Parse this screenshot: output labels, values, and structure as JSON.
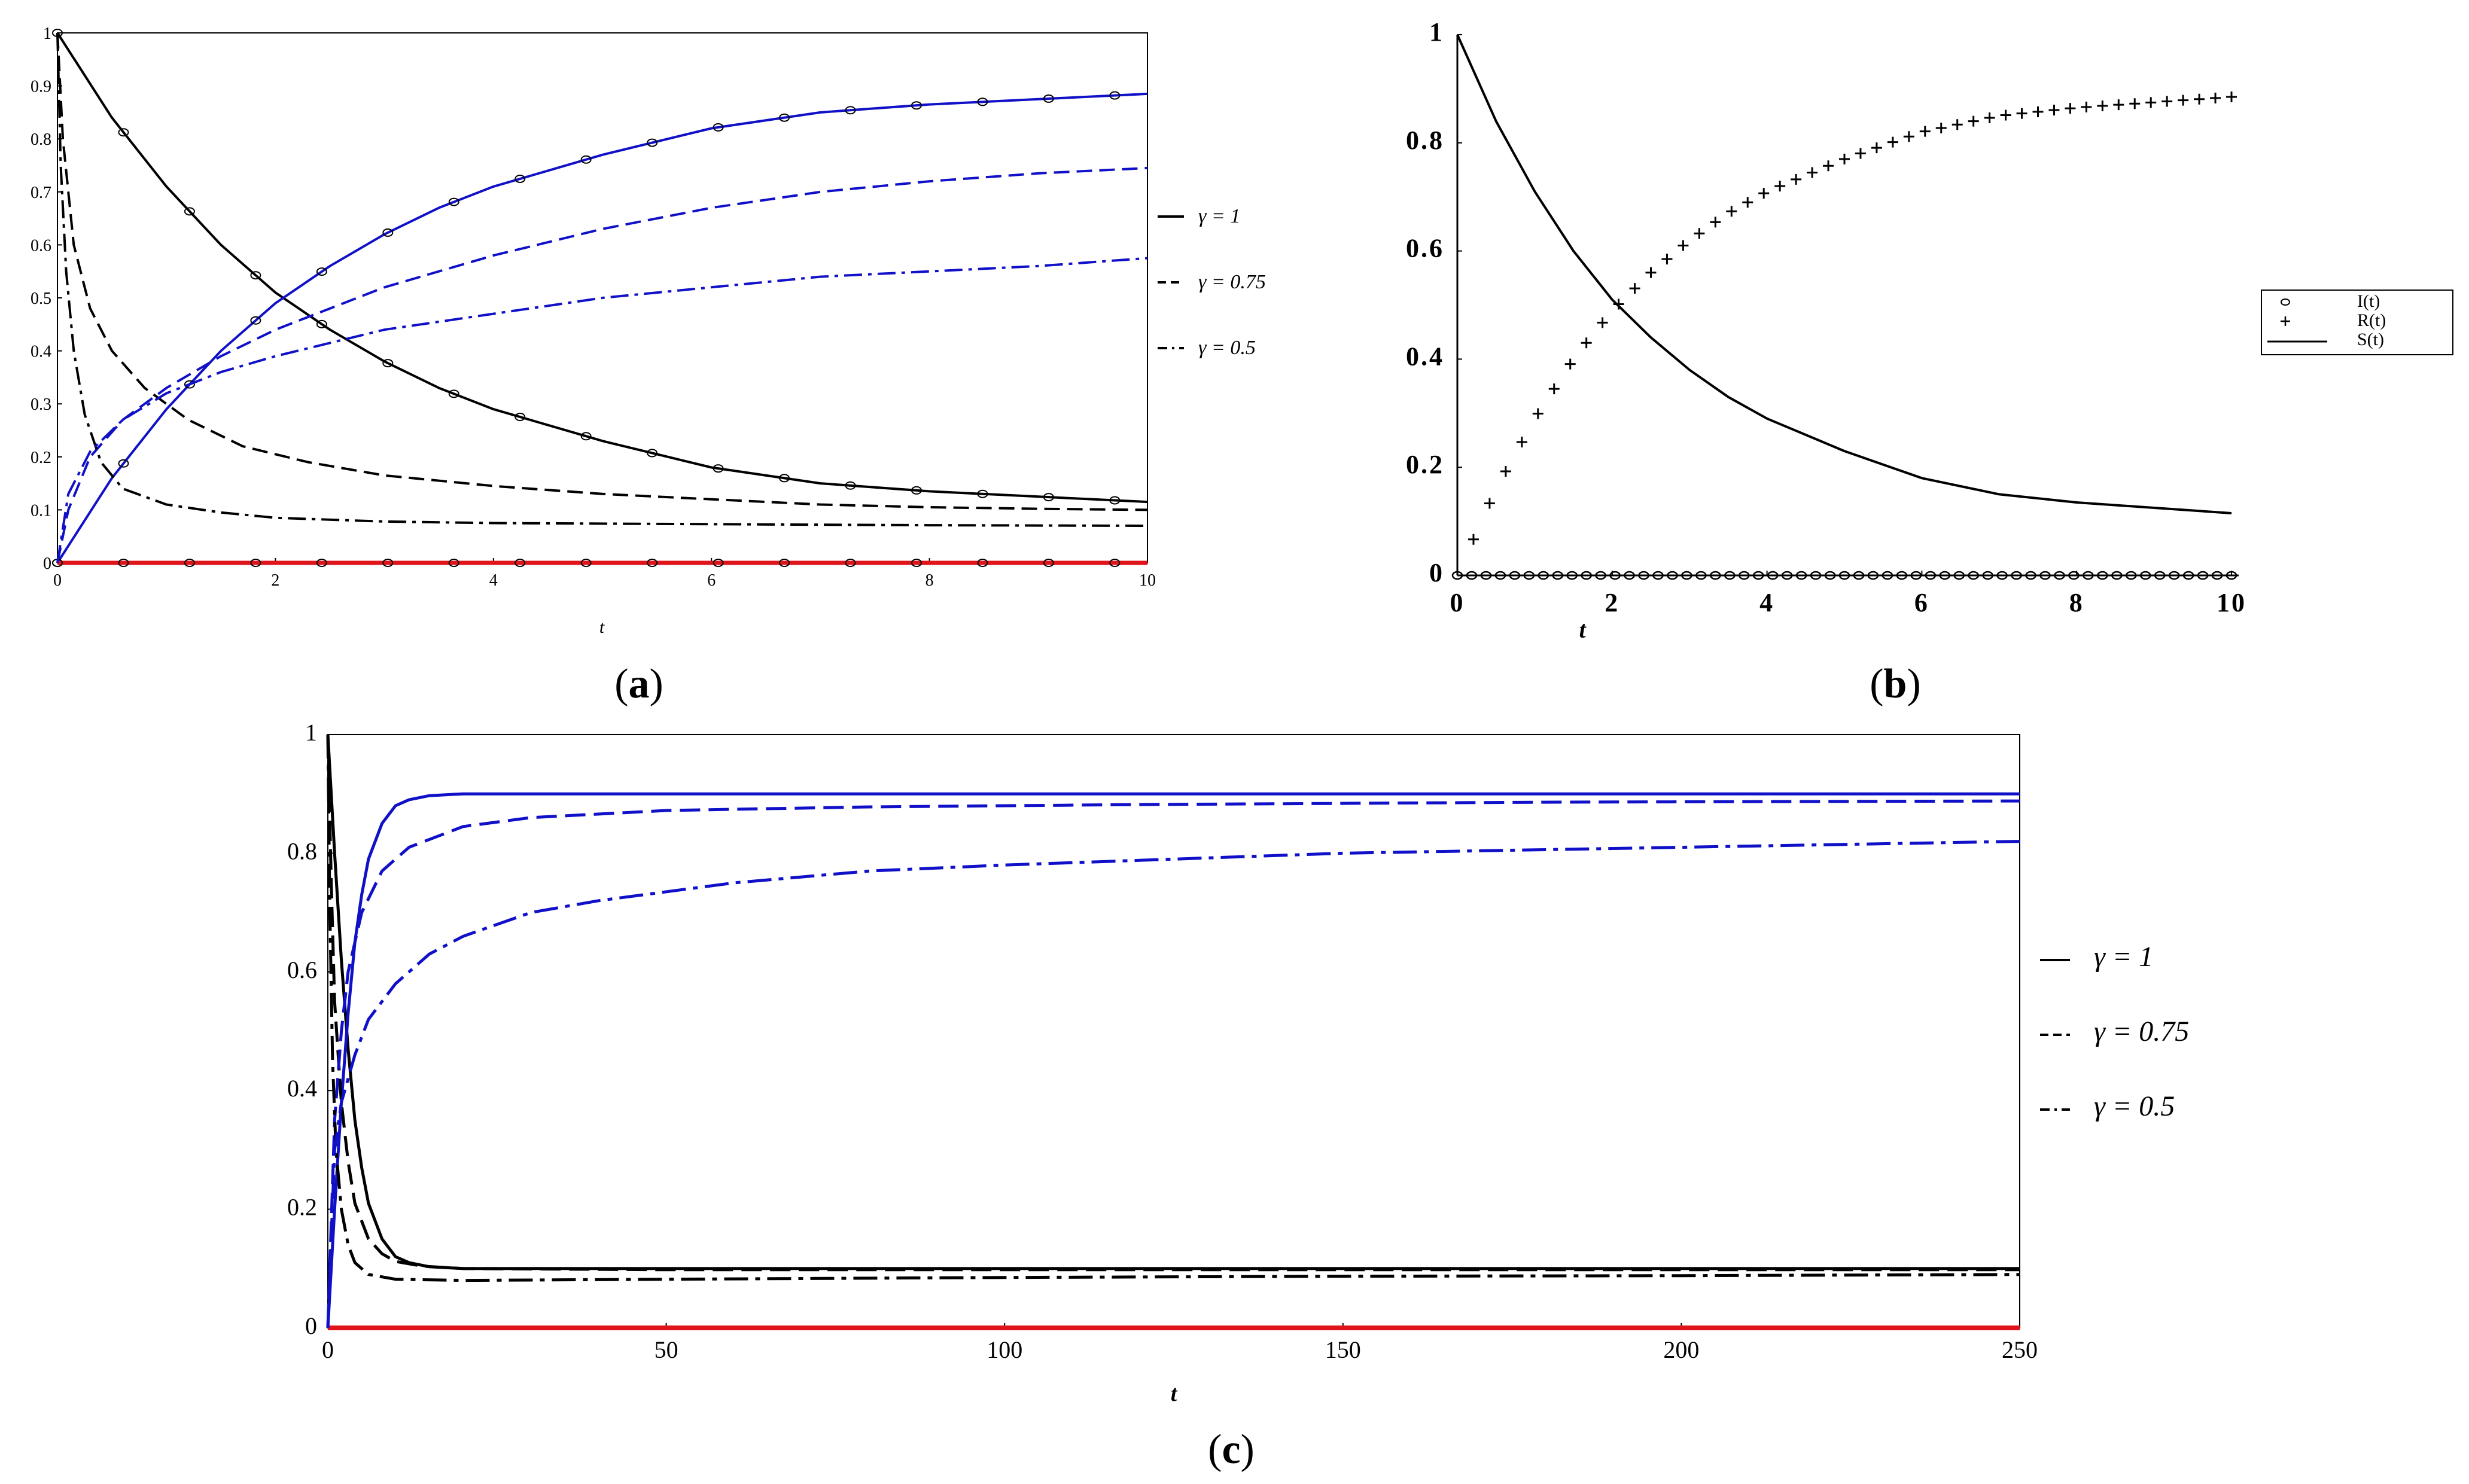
{
  "panels": {
    "a": {
      "caption_open": "(",
      "caption_letter": "a",
      "caption_close": ")"
    },
    "b": {
      "caption_open": "(",
      "caption_letter": "b",
      "caption_close": ")"
    },
    "c": {
      "caption_open": "(",
      "caption_letter": "c",
      "caption_close": ")"
    }
  },
  "colors": {
    "black": "#000000",
    "blue": "#1010c8",
    "red": "#e0151b"
  },
  "chart_data": [
    {
      "id": "a",
      "type": "line",
      "xlabel": "t",
      "ylabel": "",
      "xlim": [
        0,
        10
      ],
      "ylim": [
        0,
        1
      ],
      "xticks": [
        0,
        2,
        4,
        6,
        8,
        10
      ],
      "yticks": [
        0,
        0.1,
        0.2,
        0.3,
        0.4,
        0.5,
        0.6,
        0.7,
        0.8,
        0.9,
        1
      ],
      "legend": [
        {
          "label": "γ = 1",
          "style": "solid"
        },
        {
          "label": "γ = 0.75",
          "style": "dashed"
        },
        {
          "label": "γ = 0.5",
          "style": "dashdot"
        }
      ],
      "series": [
        {
          "name": "S, γ=1",
          "color": "black",
          "style": "solid",
          "markers": "circle",
          "x": [
            0,
            0.5,
            1,
            1.5,
            2,
            2.5,
            3,
            3.5,
            4,
            5,
            6,
            7,
            8,
            9,
            10
          ],
          "y": [
            1,
            0.84,
            0.71,
            0.6,
            0.51,
            0.44,
            0.38,
            0.33,
            0.29,
            0.23,
            0.18,
            0.15,
            0.135,
            0.125,
            0.115
          ]
        },
        {
          "name": "R, γ=1",
          "color": "blue",
          "style": "solid",
          "markers": "circle",
          "x": [
            0,
            0.5,
            1,
            1.5,
            2,
            2.5,
            3,
            3.5,
            4,
            5,
            6,
            7,
            8,
            9,
            10
          ],
          "y": [
            0,
            0.16,
            0.29,
            0.4,
            0.49,
            0.56,
            0.62,
            0.67,
            0.71,
            0.77,
            0.82,
            0.85,
            0.865,
            0.875,
            0.885
          ]
        },
        {
          "name": "I, γ=1",
          "color": "red",
          "style": "solid",
          "markers": "circle",
          "x": [
            0,
            10
          ],
          "y": [
            0,
            0
          ]
        },
        {
          "name": "S, γ=0.75",
          "color": "black",
          "style": "dashed",
          "x": [
            0,
            0.05,
            0.15,
            0.3,
            0.5,
            0.8,
            1.2,
            1.7,
            2.3,
            3,
            4,
            5,
            6,
            7,
            8,
            9,
            10
          ],
          "y": [
            1,
            0.8,
            0.6,
            0.48,
            0.4,
            0.33,
            0.27,
            0.22,
            0.19,
            0.165,
            0.145,
            0.13,
            0.12,
            0.11,
            0.105,
            0.102,
            0.1
          ]
        },
        {
          "name": "R, γ=0.75",
          "color": "blue",
          "style": "dashed",
          "x": [
            0,
            0.1,
            0.3,
            0.6,
            1,
            1.5,
            2,
            3,
            4,
            5,
            6,
            7,
            8,
            9,
            10
          ],
          "y": [
            0,
            0.1,
            0.2,
            0.27,
            0.33,
            0.39,
            0.44,
            0.52,
            0.58,
            0.63,
            0.67,
            0.7,
            0.72,
            0.735,
            0.745
          ]
        },
        {
          "name": "S, γ=0.5",
          "color": "black",
          "style": "dashdot",
          "x": [
            0,
            0.03,
            0.08,
            0.15,
            0.25,
            0.4,
            0.6,
            1,
            1.5,
            2,
            3,
            4,
            6,
            8,
            10
          ],
          "y": [
            1,
            0.75,
            0.55,
            0.4,
            0.28,
            0.19,
            0.14,
            0.11,
            0.095,
            0.085,
            0.078,
            0.075,
            0.073,
            0.071,
            0.07
          ]
        },
        {
          "name": "R, γ=0.5",
          "color": "blue",
          "style": "dashdot",
          "x": [
            0,
            0.1,
            0.3,
            0.6,
            1,
            1.5,
            2,
            3,
            4,
            5,
            6,
            7,
            8,
            9,
            10
          ],
          "y": [
            0,
            0.13,
            0.21,
            0.27,
            0.32,
            0.36,
            0.39,
            0.44,
            0.47,
            0.5,
            0.52,
            0.54,
            0.55,
            0.56,
            0.575
          ]
        }
      ]
    },
    {
      "id": "b",
      "type": "line",
      "xlabel": "t",
      "ylabel": "",
      "xlim": [
        0,
        10
      ],
      "ylim": [
        0,
        1
      ],
      "xticks": [
        0,
        2,
        4,
        6,
        8,
        10
      ],
      "yticks": [
        0,
        0.2,
        0.4,
        0.6,
        0.8,
        1
      ],
      "legend": [
        {
          "label": "I(t)",
          "style": "circle"
        },
        {
          "label": "R(t)",
          "style": "plus"
        },
        {
          "label": "S(t)",
          "style": "solid"
        }
      ],
      "series": [
        {
          "name": "S(t)",
          "color": "black",
          "style": "solid",
          "x": [
            0,
            0.5,
            1,
            1.5,
            2,
            2.5,
            3,
            3.5,
            4,
            5,
            6,
            7,
            8,
            9,
            10
          ],
          "y": [
            1,
            0.84,
            0.71,
            0.6,
            0.51,
            0.44,
            0.38,
            0.33,
            0.29,
            0.23,
            0.18,
            0.15,
            0.135,
            0.125,
            0.115
          ]
        },
        {
          "name": "R(t)",
          "color": "black",
          "style": "plus",
          "x": [
            0,
            0.5,
            1,
            1.5,
            2,
            2.5,
            3,
            3.5,
            4,
            5,
            6,
            7,
            8,
            9,
            10
          ],
          "y": [
            0,
            0.16,
            0.29,
            0.4,
            0.49,
            0.56,
            0.62,
            0.67,
            0.71,
            0.77,
            0.82,
            0.85,
            0.865,
            0.875,
            0.885
          ]
        },
        {
          "name": "I(t)",
          "color": "black",
          "style": "circle",
          "x": [
            0,
            10
          ],
          "y": [
            0,
            0
          ]
        }
      ]
    },
    {
      "id": "c",
      "type": "line",
      "xlabel": "t",
      "ylabel": "",
      "xlim": [
        0,
        250
      ],
      "ylim": [
        0,
        1
      ],
      "xticks": [
        0,
        50,
        100,
        150,
        200,
        250
      ],
      "yticks": [
        0,
        0.2,
        0.4,
        0.6,
        0.8,
        1
      ],
      "legend": [
        {
          "label": "γ = 1",
          "style": "solid"
        },
        {
          "label": "γ = 0.75",
          "style": "dashed"
        },
        {
          "label": "γ = 0.5",
          "style": "dashdot"
        }
      ],
      "series": [
        {
          "name": "S, γ=1",
          "color": "black",
          "style": "solid",
          "x": [
            0,
            1,
            2,
            3,
            4,
            5,
            6,
            8,
            10,
            12,
            15,
            20,
            50,
            250
          ],
          "y": [
            1,
            0.8,
            0.62,
            0.47,
            0.35,
            0.27,
            0.21,
            0.15,
            0.12,
            0.11,
            0.103,
            0.1,
            0.1,
            0.1
          ]
        },
        {
          "name": "R, γ=1",
          "color": "blue",
          "style": "solid",
          "x": [
            0,
            1,
            2,
            3,
            4,
            5,
            6,
            8,
            10,
            12,
            15,
            20,
            50,
            250
          ],
          "y": [
            0,
            0.2,
            0.38,
            0.53,
            0.65,
            0.73,
            0.79,
            0.85,
            0.88,
            0.89,
            0.897,
            0.9,
            0.9,
            0.9
          ]
        },
        {
          "name": "I, γ=1",
          "color": "red",
          "style": "solid",
          "x": [
            0,
            250
          ],
          "y": [
            0,
            0
          ]
        },
        {
          "name": "S, γ=0.75",
          "color": "black",
          "style": "dashed",
          "x": [
            0,
            0.5,
            1,
            2,
            3,
            4,
            6,
            8,
            10,
            14,
            20,
            50,
            100,
            250
          ],
          "y": [
            1,
            0.75,
            0.55,
            0.38,
            0.28,
            0.21,
            0.15,
            0.125,
            0.112,
            0.104,
            0.1,
            0.098,
            0.098,
            0.098
          ]
        },
        {
          "name": "R, γ=0.75",
          "color": "blue",
          "style": "dashed",
          "x": [
            0,
            1,
            2,
            3,
            5,
            8,
            12,
            20,
            30,
            50,
            80,
            120,
            180,
            250
          ],
          "y": [
            0,
            0.35,
            0.5,
            0.6,
            0.7,
            0.77,
            0.81,
            0.845,
            0.86,
            0.872,
            0.878,
            0.882,
            0.886,
            0.888
          ]
        },
        {
          "name": "S, γ=0.5",
          "color": "black",
          "style": "dashdot",
          "x": [
            0,
            0.3,
            0.7,
            1.2,
            2,
            3,
            4,
            6,
            10,
            20,
            50,
            100,
            150,
            200,
            250
          ],
          "y": [
            1,
            0.7,
            0.45,
            0.3,
            0.2,
            0.14,
            0.11,
            0.09,
            0.082,
            0.08,
            0.082,
            0.085,
            0.087,
            0.088,
            0.09
          ]
        },
        {
          "name": "R, γ=0.5",
          "color": "blue",
          "style": "dashdot",
          "x": [
            0,
            1,
            2,
            4,
            6,
            10,
            15,
            20,
            30,
            40,
            60,
            80,
            100,
            150,
            200,
            250
          ],
          "y": [
            0,
            0.3,
            0.38,
            0.46,
            0.52,
            0.58,
            0.63,
            0.66,
            0.7,
            0.72,
            0.75,
            0.77,
            0.78,
            0.8,
            0.81,
            0.82
          ]
        }
      ]
    }
  ]
}
